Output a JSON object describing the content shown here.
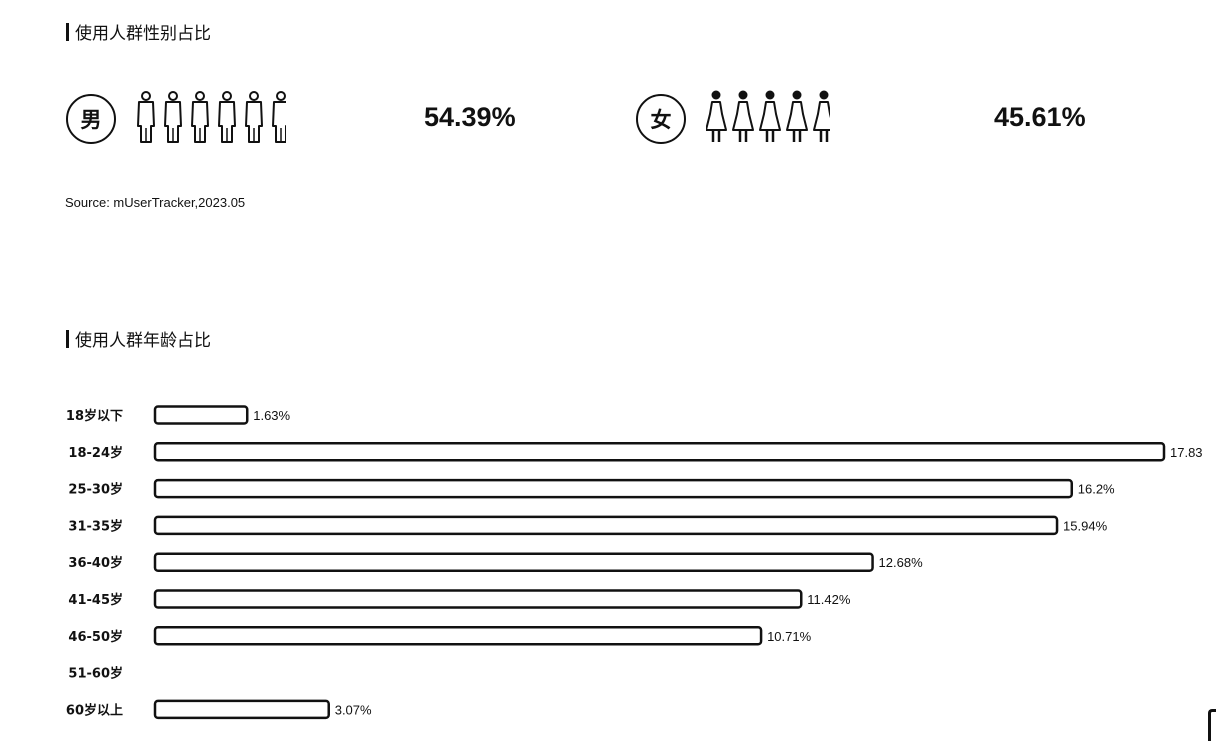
{
  "gender_section": {
    "title": "使用人群性别占比",
    "male": {
      "badge": "男",
      "percent": "54.39%",
      "icon": "male-person-icon"
    },
    "female": {
      "badge": "女",
      "percent": "45.61%",
      "icon": "female-person-icon"
    },
    "source": "Source:  mUserTracker,2023.05"
  },
  "age_section": {
    "title": "使用人群年龄占比"
  },
  "chart_data": [
    {
      "type": "pie",
      "title": "使用人群性别占比",
      "categories": [
        "男",
        "女"
      ],
      "values": [
        54.39,
        45.61
      ],
      "value_labels": [
        "54.39%",
        "45.61%"
      ]
    },
    {
      "type": "bar",
      "orientation": "horizontal",
      "title": "使用人群年龄占比",
      "categories": [
        "18岁以下",
        "18-24岁",
        "25-30岁",
        "31-35岁",
        "36-40岁",
        "41-45岁",
        "46-50岁",
        "51-60岁",
        "60岁以上"
      ],
      "values": [
        1.63,
        17.83,
        16.2,
        15.94,
        12.68,
        11.42,
        10.71,
        null,
        3.07
      ],
      "value_labels": [
        "1.63%",
        "17.83",
        "16.2%",
        "15.94%",
        "12.68%",
        "11.42%",
        "10.71%",
        "",
        "3.07%"
      ],
      "xlim": [
        0,
        17.83
      ],
      "grid": false,
      "colors": {
        "bar_fill": "#ffffff",
        "bar_stroke": "#111111"
      }
    }
  ]
}
